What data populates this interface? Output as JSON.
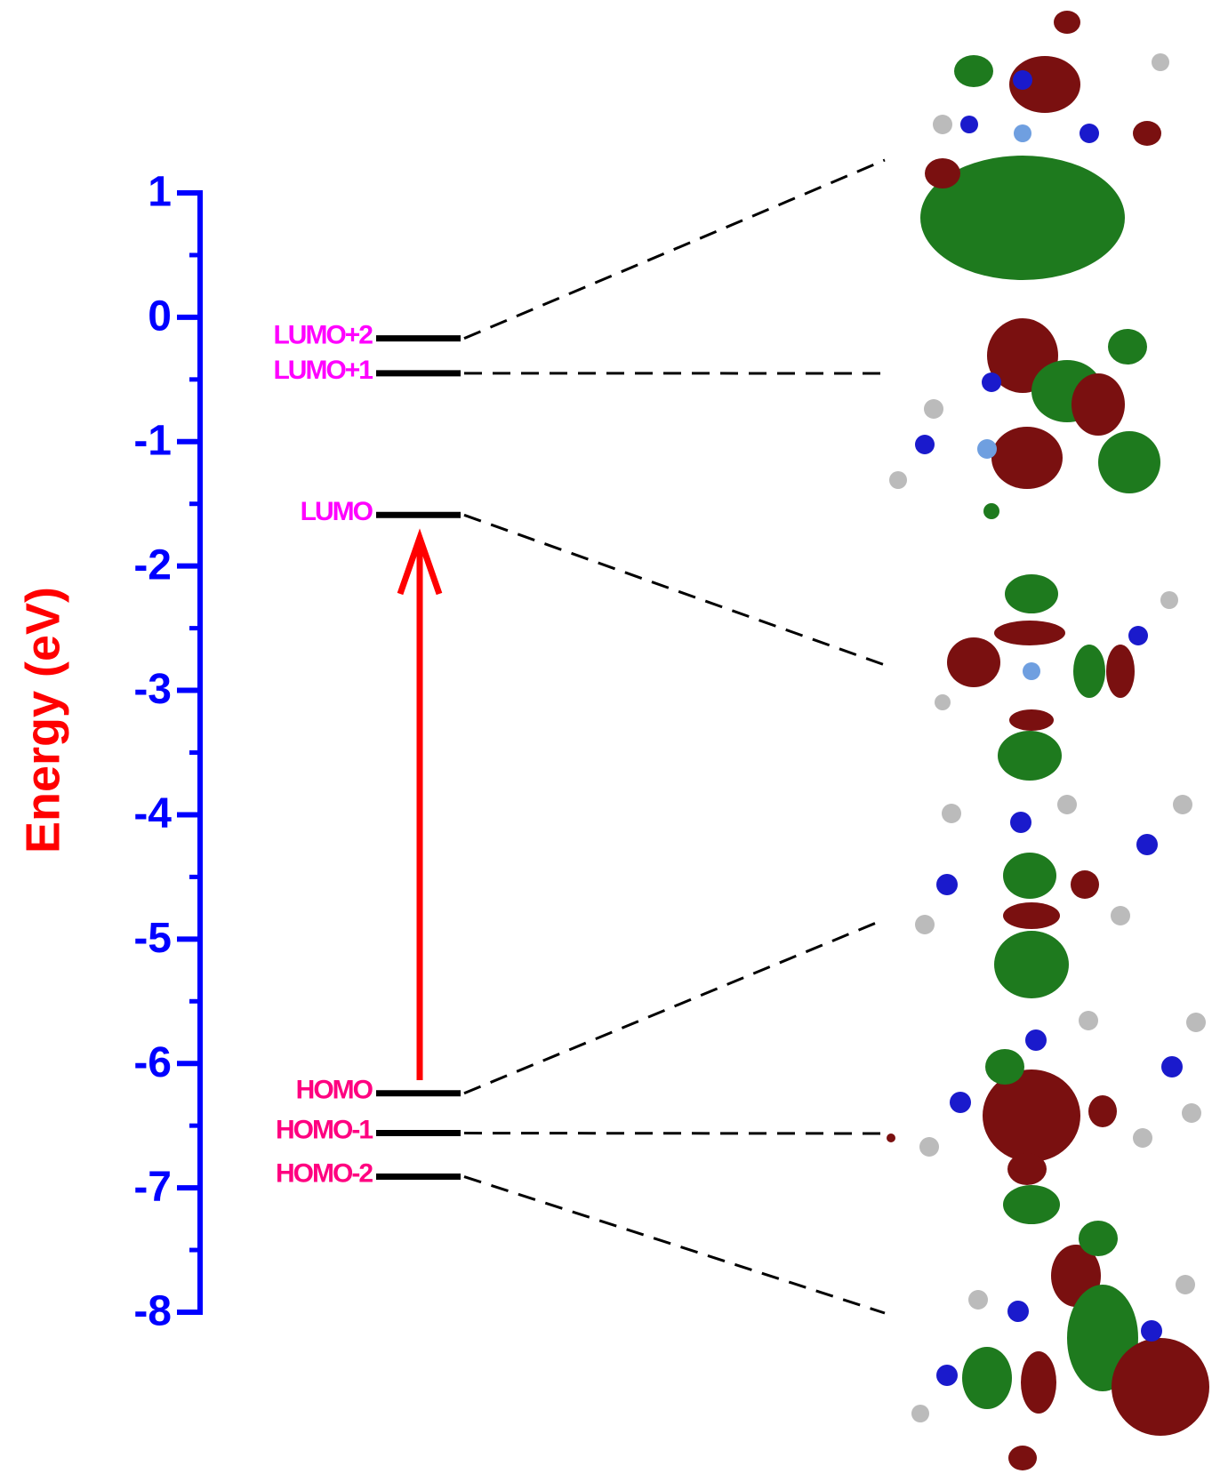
{
  "chart_data": {
    "type": "energy-level",
    "ylabel": "Energy (eV)",
    "ylim": [
      -8,
      1
    ],
    "yticks": [
      -8,
      -7,
      -6,
      -5,
      -4,
      -3,
      -2,
      -1,
      0,
      1
    ],
    "axis_color": "#0000ff",
    "ylabel_color": "#ff0000",
    "level_color": "#000000",
    "series": [
      {
        "name": "LUMO+2",
        "color": "#ff00ff",
        "values": [
          -0.17
        ]
      },
      {
        "name": "LUMO+1",
        "color": "#ff00ff",
        "values": [
          -0.45
        ]
      },
      {
        "name": "LUMO",
        "color": "#ff00ff",
        "values": [
          -1.59
        ]
      },
      {
        "name": "HOMO",
        "color": "#ff0080",
        "values": [
          -6.24
        ]
      },
      {
        "name": "HOMO-1",
        "color": "#ff0080",
        "values": [
          -6.56
        ]
      },
      {
        "name": "HOMO-2",
        "color": "#ff0080",
        "values": [
          -6.91
        ]
      }
    ]
  }
}
